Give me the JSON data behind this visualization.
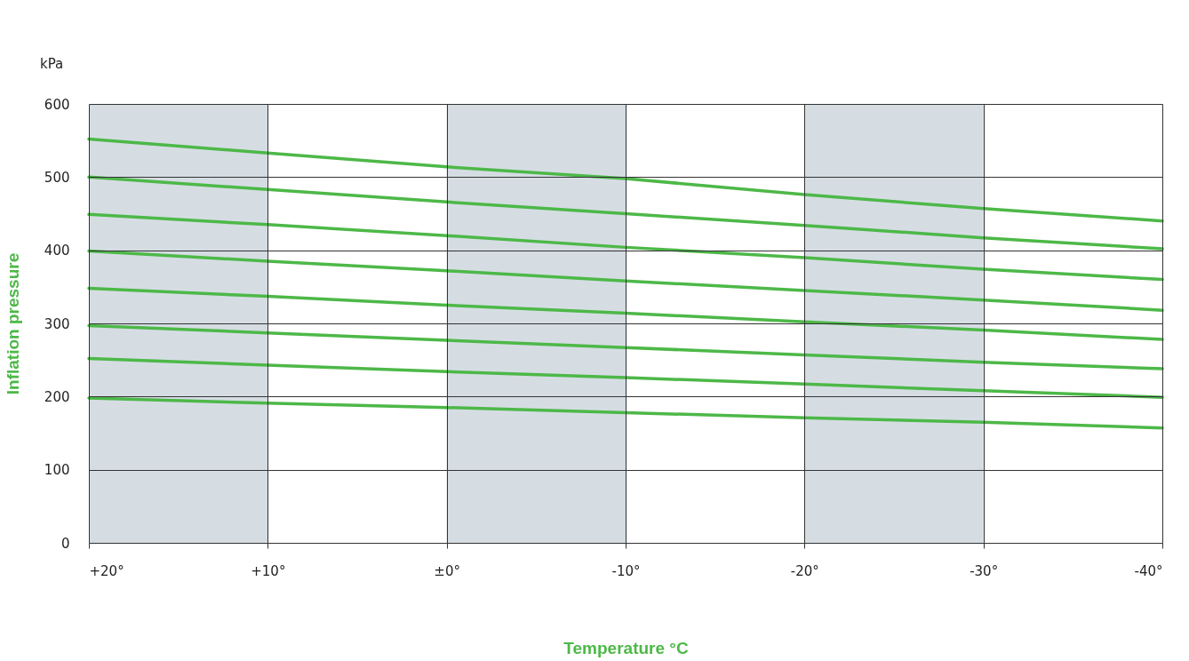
{
  "chart_data": {
    "type": "line",
    "xlabel": "Temperature °C",
    "ylabel": "Inflation pressure",
    "annotations": [
      "kPa"
    ],
    "x": [
      20,
      10,
      0,
      -10,
      -20,
      -30,
      -40
    ],
    "xlim": [
      20,
      -40
    ],
    "xticks": [
      {
        "value": 20,
        "label": "+20°"
      },
      {
        "value": 10,
        "label": "+10°"
      },
      {
        "value": 0,
        "label": "±0°"
      },
      {
        "value": -10,
        "label": "-10°"
      },
      {
        "value": -20,
        "label": "-20°"
      },
      {
        "value": -30,
        "label": "-30°"
      },
      {
        "value": -40,
        "label": "-40°"
      }
    ],
    "ylim": [
      0,
      600
    ],
    "yticks": [
      0,
      100,
      200,
      300,
      400,
      500,
      600
    ],
    "grid": true,
    "line_style": "solid",
    "bands": [
      {
        "axis": "x",
        "from": 20,
        "to": 10,
        "color": "#d5dde3"
      },
      {
        "axis": "x",
        "from": 0,
        "to": -10,
        "color": "#d5dde3"
      },
      {
        "axis": "x",
        "from": -20,
        "to": -30,
        "color": "#d5dde3"
      }
    ],
    "series": [
      {
        "color": "#4db848",
        "values": [
          552,
          533,
          514,
          498,
          476,
          457,
          440
        ]
      },
      {
        "color": "#4db848",
        "values": [
          500,
          483,
          466,
          450,
          434,
          417,
          402
        ]
      },
      {
        "color": "#4db848",
        "values": [
          449,
          435,
          420,
          404,
          390,
          374,
          360
        ]
      },
      {
        "color": "#4db848",
        "values": [
          399,
          385,
          372,
          358,
          345,
          332,
          318
        ]
      },
      {
        "color": "#4db848",
        "values": [
          348,
          337,
          325,
          314,
          302,
          291,
          278
        ]
      },
      {
        "color": "#4db848",
        "values": [
          297,
          287,
          277,
          267,
          257,
          247,
          238
        ]
      },
      {
        "color": "#4db848",
        "values": [
          252,
          243,
          234,
          226,
          217,
          208,
          199
        ]
      },
      {
        "color": "#4db848",
        "values": [
          198,
          191,
          185,
          178,
          171,
          165,
          157
        ]
      }
    ]
  }
}
